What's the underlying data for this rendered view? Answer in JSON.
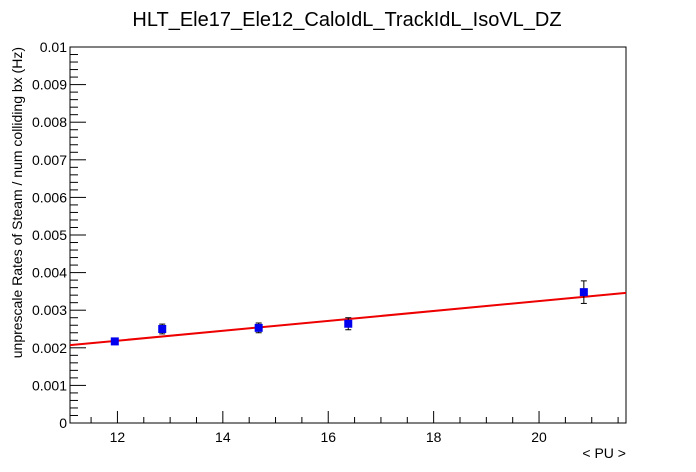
{
  "chart_data": {
    "type": "scatter",
    "title": "HLT_Ele17_Ele12_CaloIdL_TrackIdL_IsoVL_DZ",
    "xlabel": "< PU >",
    "ylabel": "unprescale Rates of Steam / num colliding bx (Hz)",
    "xlim": [
      11.1,
      21.65
    ],
    "ylim": [
      0,
      0.01
    ],
    "x_major_ticks": [
      12,
      14,
      16,
      18,
      20
    ],
    "x_tick_labels": [
      "12",
      "14",
      "16",
      "18",
      "20"
    ],
    "y_major_ticks": [
      0,
      0.001,
      0.002,
      0.003,
      0.004,
      0.005,
      0.006,
      0.007,
      0.008,
      0.009,
      0.01
    ],
    "y_tick_labels": [
      "0",
      "0.001",
      "0.002",
      "0.003",
      "0.004",
      "0.005",
      "0.006",
      "0.007",
      "0.008",
      "0.009",
      "0.01"
    ],
    "grid": false,
    "legend": "none",
    "series": [
      {
        "kind": "points",
        "color": "#0000ee",
        "points": [
          {
            "x": 11.95,
            "y": 0.00217,
            "err": 8e-05
          },
          {
            "x": 12.85,
            "y": 0.0025,
            "err": 0.00013
          },
          {
            "x": 14.68,
            "y": 0.00253,
            "err": 0.00013
          },
          {
            "x": 16.38,
            "y": 0.00264,
            "err": 0.00016
          },
          {
            "x": 20.85,
            "y": 0.00348,
            "err": 0.0003
          }
        ]
      },
      {
        "kind": "fit-line",
        "color": "#ee0000",
        "x": [
          11.1,
          21.65
        ],
        "y": [
          0.00207,
          0.00346
        ]
      }
    ]
  }
}
